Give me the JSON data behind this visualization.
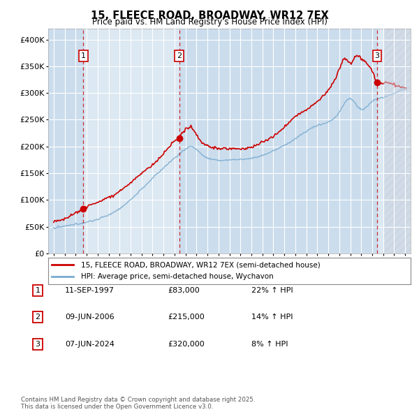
{
  "title": "15, FLEECE ROAD, BROADWAY, WR12 7EX",
  "subtitle": "Price paid vs. HM Land Registry's House Price Index (HPI)",
  "ylim": [
    0,
    420000
  ],
  "yticks": [
    0,
    50000,
    100000,
    150000,
    200000,
    250000,
    300000,
    350000,
    400000
  ],
  "ytick_labels": [
    "£0",
    "£50K",
    "£100K",
    "£150K",
    "£200K",
    "£250K",
    "£300K",
    "£350K",
    "£400K"
  ],
  "xlim_start": 1994.5,
  "xlim_end": 2027.5,
  "price_paid": [
    {
      "date": 1997.7,
      "price": 83000
    },
    {
      "date": 2006.44,
      "price": 215000
    },
    {
      "date": 2024.44,
      "price": 320000
    }
  ],
  "sale_labels": [
    "1",
    "2",
    "3"
  ],
  "sale_dates_text": [
    "11-SEP-1997",
    "09-JUN-2006",
    "07-JUN-2024"
  ],
  "sale_prices_text": [
    "£83,000",
    "£215,000",
    "£320,000"
  ],
  "sale_hpi_text": [
    "22% ↑ HPI",
    "14% ↑ HPI",
    "8% ↑ HPI"
  ],
  "red_line_color": "#cc0000",
  "blue_line_color": "#7aabcf",
  "legend_label_red": "15, FLEECE ROAD, BROADWAY, WR12 7EX (semi-detached house)",
  "legend_label_blue": "HPI: Average price, semi-detached house, Wychavon",
  "footnote": "Contains HM Land Registry data © Crown copyright and database right 2025.\nThis data is licensed under the Open Government Licence v3.0.",
  "plot_bg_color": "#dce8f2",
  "grid_color": "#ffffff",
  "future_hatch_start": 2025.0,
  "shade_regions": [
    {
      "start": 1994.5,
      "end": 1997.7
    },
    {
      "start": 2006.44,
      "end": 2024.44
    }
  ]
}
